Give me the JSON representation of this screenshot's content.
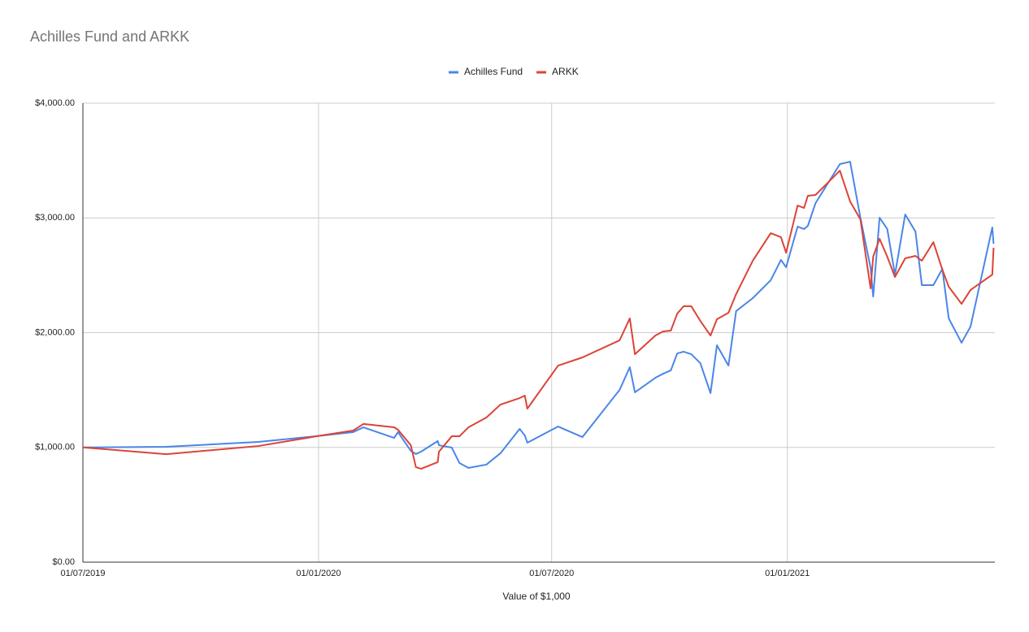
{
  "chart_data": {
    "type": "line",
    "title": "Achilles Fund and ARKK",
    "x_label": "Value of $1,000",
    "x": [
      "2019-07-01",
      "2019-09-04",
      "2019-11-15",
      "2020-01-01",
      "2020-01-28",
      "2020-02-05",
      "2020-02-29",
      "2020-03-03",
      "2020-03-13",
      "2020-03-17",
      "2020-03-21",
      "2020-04-03",
      "2020-04-04",
      "2020-04-14",
      "2020-04-20",
      "2020-04-27",
      "2020-05-11",
      "2020-05-22",
      "2020-06-06",
      "2020-06-10",
      "2020-06-12",
      "2020-07-06",
      "2020-07-25",
      "2020-08-23",
      "2020-08-31",
      "2020-09-04",
      "2020-09-20",
      "2020-09-26",
      "2020-10-02",
      "2020-10-07",
      "2020-10-12",
      "2020-10-18",
      "2020-10-25",
      "2020-11-02",
      "2020-11-07",
      "2020-11-16",
      "2020-11-22",
      "2020-12-05",
      "2020-12-19",
      "2020-12-27",
      "2020-12-31",
      "2021-01-09",
      "2021-01-14",
      "2021-01-17",
      "2021-01-23",
      "2021-02-11",
      "2021-02-19",
      "2021-02-27",
      "2021-03-07",
      "2021-03-09",
      "2021-03-14",
      "2021-03-20",
      "2021-03-26",
      "2021-04-03",
      "2021-04-11",
      "2021-04-16",
      "2021-04-25",
      "2021-05-02",
      "2021-05-07",
      "2021-05-17",
      "2021-05-24",
      "2021-06-10",
      "2021-06-11"
    ],
    "series": [
      {
        "name": "Achilles Fund",
        "color": "#4a86e8",
        "values": [
          1000,
          1005,
          1048,
          1100,
          1133,
          1175,
          1083,
          1133,
          970,
          942,
          963,
          1055,
          1019,
          998,
          864,
          821,
          850,
          949,
          1161,
          1104,
          1041,
          1182,
          1090,
          1501,
          1699,
          1480,
          1607,
          1642,
          1671,
          1819,
          1834,
          1812,
          1735,
          1473,
          1890,
          1713,
          2188,
          2301,
          2457,
          2634,
          2570,
          2924,
          2903,
          2931,
          3129,
          3469,
          3490,
          3002,
          2563,
          2315,
          3002,
          2903,
          2506,
          3030,
          2881,
          2414,
          2414,
          2556,
          2124,
          1912,
          2053,
          2917,
          2775
        ]
      },
      {
        "name": "ARKK",
        "color": "#db4437",
        "values": [
          1000,
          941,
          1012,
          1100,
          1147,
          1204,
          1175,
          1154,
          1019,
          828,
          814,
          871,
          963,
          1097,
          1097,
          1175,
          1260,
          1373,
          1430,
          1451,
          1338,
          1713,
          1784,
          1933,
          2124,
          1812,
          1975,
          2011,
          2018,
          2166,
          2230,
          2230,
          2103,
          1975,
          2117,
          2173,
          2336,
          2627,
          2867,
          2832,
          2697,
          3108,
          3087,
          3193,
          3200,
          3412,
          3143,
          2988,
          2386,
          2662,
          2818,
          2662,
          2485,
          2648,
          2669,
          2627,
          2789,
          2549,
          2400,
          2251,
          2372,
          2506,
          2740
        ]
      }
    ],
    "xlim": [
      "2019-07-01",
      "2021-06-12"
    ],
    "xticks": [
      {
        "value": "2019-07-01",
        "label": "01/07/2019"
      },
      {
        "value": "2020-01-01",
        "label": "01/01/2020"
      },
      {
        "value": "2020-07-01",
        "label": "01/07/2020"
      },
      {
        "value": "2021-01-01",
        "label": "01/01/2021"
      }
    ],
    "ylim": [
      0,
      4000
    ],
    "yticks": [
      {
        "value": 0,
        "label": "$0.00"
      },
      {
        "value": 1000,
        "label": "$1,000.00"
      },
      {
        "value": 2000,
        "label": "$2,000.00"
      },
      {
        "value": 3000,
        "label": "$3,000.00"
      },
      {
        "value": 4000,
        "label": "$4,000.00"
      }
    ],
    "grid": true,
    "legend": "top"
  }
}
